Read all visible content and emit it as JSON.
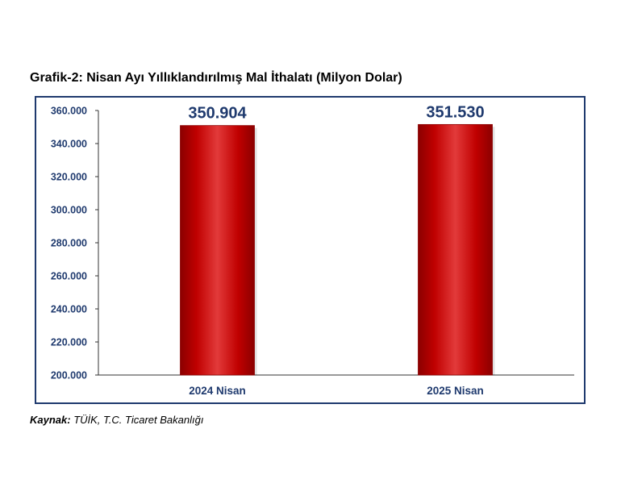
{
  "header": {
    "title": "Grafik-2: Nisan Ayı Yıllıklandırılmış Mal İthalatı (Milyon Dolar)"
  },
  "footer": {
    "source_label": "Kaynak:",
    "source_text": " TÜİK, T.C. Ticaret Bakanlığı"
  },
  "colors": {
    "bar": "#c00000",
    "bar_dark": "#8b0000",
    "bar_light": "#e23a3a",
    "axis_text": "#1f3a6e",
    "data_label": "#1f3a6e",
    "frame": "#1f3a6e"
  },
  "chart_data": {
    "type": "bar",
    "categories": [
      "2024 Nisan",
      "2025 Nisan"
    ],
    "values": [
      350904,
      351530
    ],
    "data_labels": [
      "350.904",
      "351.530"
    ],
    "ylim": [
      200000,
      360000
    ],
    "yticks": [
      200000,
      220000,
      240000,
      260000,
      280000,
      300000,
      320000,
      340000,
      360000
    ],
    "ytick_labels": [
      "200.000",
      "220.000",
      "240.000",
      "260.000",
      "280.000",
      "300.000",
      "320.000",
      "340.000",
      "360.000"
    ],
    "xlabel": "",
    "ylabel": "",
    "grid": false,
    "legend": "none"
  }
}
